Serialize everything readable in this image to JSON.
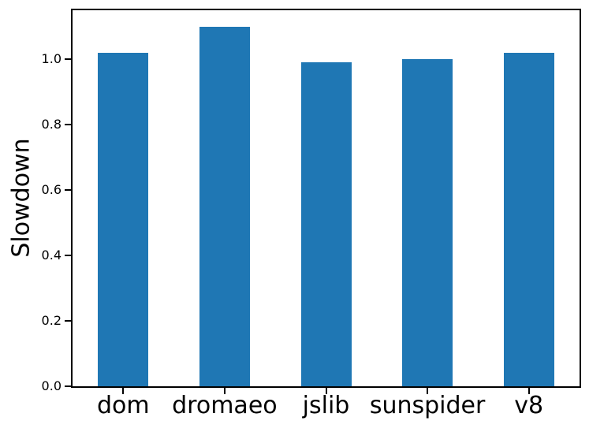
{
  "chart_data": {
    "type": "bar",
    "title": "",
    "categories": [
      "dom",
      "dromaeo",
      "jslib",
      "sunspider",
      "v8"
    ],
    "values": [
      1.02,
      1.1,
      0.99,
      1.0,
      1.02
    ],
    "xlabel": "",
    "ylabel": "Slowdown",
    "ylim": [
      0,
      1.15
    ],
    "ytick_values": [
      0.0,
      0.2,
      0.4,
      0.6,
      0.8,
      1.0
    ],
    "ytick_labels": [
      "0.0",
      "0.2",
      "0.4",
      "0.6",
      "0.8",
      "1.0"
    ],
    "grid": false,
    "legend": "none",
    "bar_color": "#1f77b4",
    "bar_width_fraction": 0.5,
    "axis_color": "#000000"
  }
}
